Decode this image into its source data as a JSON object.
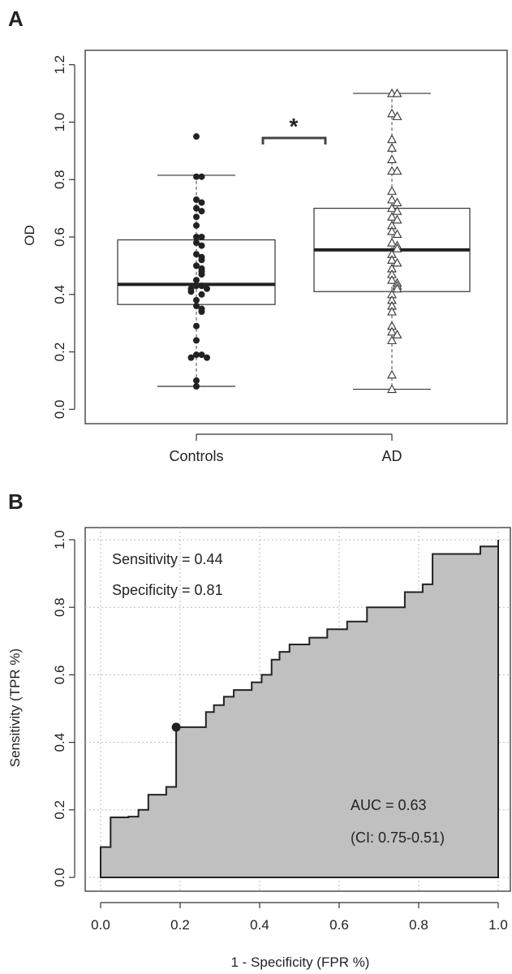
{
  "panels": {
    "a_label": "A",
    "b_label": "B"
  },
  "colors": {
    "box_fill": "#ffffff",
    "roc_fill": "#c0c0c0",
    "ink": "#222222",
    "grid": "#bbbbbb"
  },
  "chart_data": [
    {
      "type": "box",
      "panel": "A",
      "ylabel": "OD",
      "xlabel": "",
      "ylim": [
        -0.05,
        1.25
      ],
      "yticks": [
        "0.0",
        "0.2",
        "0.4",
        "0.6",
        "0.8",
        "1.0",
        "1.2"
      ],
      "categories": [
        "Controls",
        "AD"
      ],
      "significance": "*",
      "boxes": [
        {
          "name": "Controls",
          "min": 0.08,
          "q1": 0.365,
          "median": 0.435,
          "q3": 0.59,
          "max": 0.815,
          "marker": "filled-circle",
          "points": [
            0.95,
            0.81,
            0.81,
            0.73,
            0.72,
            0.7,
            0.69,
            0.67,
            0.64,
            0.6,
            0.6,
            0.58,
            0.57,
            0.54,
            0.53,
            0.52,
            0.5,
            0.49,
            0.48,
            0.47,
            0.45,
            0.43,
            0.43,
            0.42,
            0.42,
            0.41,
            0.4,
            0.38,
            0.36,
            0.35,
            0.34,
            0.29,
            0.24,
            0.19,
            0.19,
            0.18,
            0.18,
            0.1,
            0.08
          ]
        },
        {
          "name": "AD",
          "min": 0.07,
          "q1": 0.41,
          "median": 0.555,
          "q3": 0.7,
          "max": 1.1,
          "marker": "open-triangle",
          "points": [
            1.1,
            1.1,
            1.03,
            1.02,
            0.94,
            0.91,
            0.87,
            0.83,
            0.83,
            0.76,
            0.73,
            0.72,
            0.7,
            0.69,
            0.67,
            0.66,
            0.64,
            0.62,
            0.61,
            0.58,
            0.57,
            0.56,
            0.54,
            0.52,
            0.51,
            0.49,
            0.47,
            0.45,
            0.44,
            0.43,
            0.42,
            0.4,
            0.38,
            0.36,
            0.34,
            0.29,
            0.27,
            0.26,
            0.24,
            0.12,
            0.07
          ]
        }
      ]
    },
    {
      "type": "area",
      "panel": "B",
      "xlabel": "1 - Specificity (FPR %)",
      "ylabel": "Sensitivity (TPR %)",
      "xlim": [
        0,
        1.0
      ],
      "ylim": [
        0,
        1.0
      ],
      "xticks": [
        "0.0",
        "0.2",
        "0.4",
        "0.6",
        "0.8",
        "1.0"
      ],
      "yticks": [
        "0.0",
        "0.2",
        "0.4",
        "0.6",
        "0.8",
        "1.0"
      ],
      "grid": true,
      "annotations": {
        "sensitivity": "Sensitivity = 0.44",
        "specificity": "Specificity = 0.81",
        "auc": "AUC = 0.63",
        "ci": "(CI: 0.75-0.51)"
      },
      "operating_point": {
        "x": 0.19,
        "y": 0.445
      },
      "roc_steps": [
        [
          0.0,
          0.0
        ],
        [
          0.0,
          0.09
        ],
        [
          0.025,
          0.09
        ],
        [
          0.025,
          0.178
        ],
        [
          0.07,
          0.178
        ],
        [
          0.07,
          0.18
        ],
        [
          0.095,
          0.18
        ],
        [
          0.095,
          0.2
        ],
        [
          0.12,
          0.2
        ],
        [
          0.12,
          0.245
        ],
        [
          0.165,
          0.245
        ],
        [
          0.165,
          0.268
        ],
        [
          0.19,
          0.268
        ],
        [
          0.19,
          0.445
        ],
        [
          0.265,
          0.445
        ],
        [
          0.265,
          0.49
        ],
        [
          0.285,
          0.49
        ],
        [
          0.285,
          0.51
        ],
        [
          0.31,
          0.51
        ],
        [
          0.31,
          0.535
        ],
        [
          0.335,
          0.535
        ],
        [
          0.335,
          0.555
        ],
        [
          0.38,
          0.555
        ],
        [
          0.38,
          0.578
        ],
        [
          0.405,
          0.578
        ],
        [
          0.405,
          0.6
        ],
        [
          0.43,
          0.6
        ],
        [
          0.43,
          0.645
        ],
        [
          0.45,
          0.645
        ],
        [
          0.45,
          0.668
        ],
        [
          0.475,
          0.668
        ],
        [
          0.475,
          0.69
        ],
        [
          0.525,
          0.69
        ],
        [
          0.525,
          0.71
        ],
        [
          0.57,
          0.71
        ],
        [
          0.57,
          0.735
        ],
        [
          0.62,
          0.735
        ],
        [
          0.62,
          0.758
        ],
        [
          0.67,
          0.758
        ],
        [
          0.67,
          0.8
        ],
        [
          0.765,
          0.8
        ],
        [
          0.765,
          0.845
        ],
        [
          0.81,
          0.845
        ],
        [
          0.81,
          0.868
        ],
        [
          0.835,
          0.868
        ],
        [
          0.835,
          0.958
        ],
        [
          0.955,
          0.958
        ],
        [
          0.955,
          0.98
        ],
        [
          1.0,
          0.98
        ],
        [
          1.0,
          1.0
        ],
        [
          1.0,
          0.0
        ]
      ]
    }
  ]
}
